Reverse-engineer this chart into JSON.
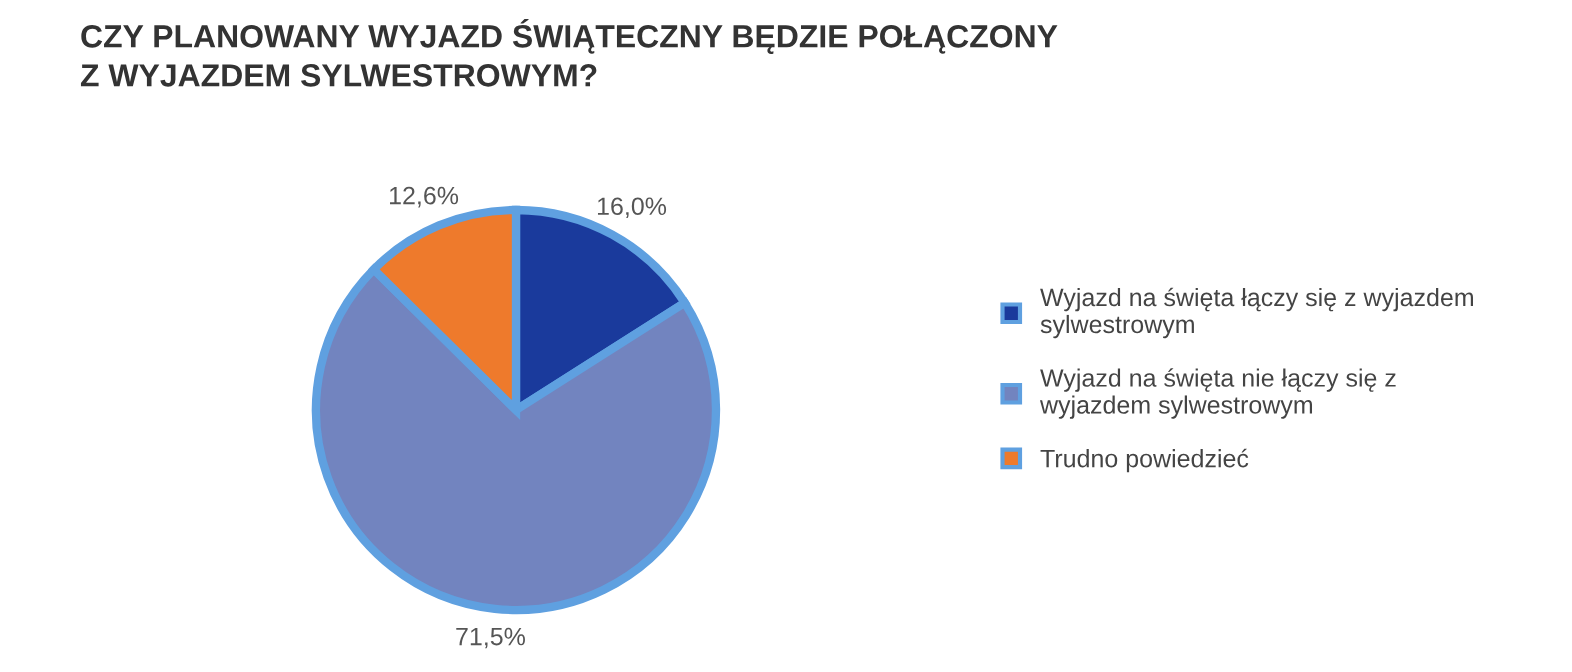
{
  "chart_data": {
    "type": "pie",
    "title": "CZY PLANOWANY WYJAZD ŚWIĄTECZNY BĘDZIE POŁĄCZONY\nZ WYJAZDEM SYLWESTROWYM?",
    "categories": [
      "Wyjazd na święta łączy się z wyjazdem\nsylwestrowym",
      "Wyjazd na święta nie łączy się z\nwyjazdem sylwestrowym",
      "Trudno powiedzieć"
    ],
    "values": [
      16.0,
      71.5,
      12.6
    ],
    "colors": [
      "#1a3a9c",
      "#7284bf",
      "#ee7a2c"
    ],
    "value_labels": [
      "16,0%",
      "71,5%",
      "12,6%"
    ],
    "legend": "right"
  }
}
